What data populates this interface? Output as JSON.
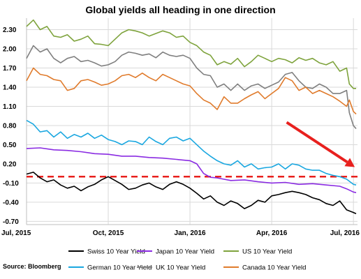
{
  "chart_data": {
    "type": "line",
    "title": "Global yields all heading in one direction",
    "source": "Source: Bloomberg",
    "x_tick_labels": [
      "Jul, 2015",
      "Oct, 2015",
      "Jan, 2016",
      "Apr, 2016",
      "Jul, 2016"
    ],
    "x_tick_months": [
      0,
      3,
      6,
      9,
      12
    ],
    "xlim_months": [
      0,
      12.15
    ],
    "y_tick_labels": [
      "2.30",
      "2.00",
      "1.70",
      "1.40",
      "1.10",
      "0.80",
      "0.50",
      "0.20",
      "-0.10",
      "-0.40",
      "-0.70"
    ],
    "y_ticks": [
      2.3,
      2.0,
      1.7,
      1.4,
      1.1,
      0.8,
      0.5,
      0.2,
      -0.1,
      -0.4,
      -0.7
    ],
    "ylim": [
      -0.75,
      2.48
    ],
    "grid": true,
    "reference_line": {
      "y": 0.0,
      "color": "#e8201e",
      "style": "dashed"
    },
    "arrow_annotation": {
      "from": [
        9.55,
        0.85
      ],
      "to": [
        12.05,
        0.15
      ],
      "color": "#e8201e"
    },
    "series": [
      {
        "name": "Swiss 10 Year Yield",
        "color": "#000000",
        "points": [
          [
            0,
            0.04
          ],
          [
            0.25,
            0.07
          ],
          [
            0.5,
            -0.02
          ],
          [
            0.75,
            -0.08
          ],
          [
            1,
            -0.05
          ],
          [
            1.25,
            -0.13
          ],
          [
            1.5,
            -0.18
          ],
          [
            1.75,
            -0.15
          ],
          [
            2,
            -0.22
          ],
          [
            2.25,
            -0.16
          ],
          [
            2.5,
            -0.12
          ],
          [
            2.75,
            -0.05
          ],
          [
            3,
            0.0
          ],
          [
            3.25,
            -0.06
          ],
          [
            3.5,
            -0.12
          ],
          [
            3.75,
            -0.2
          ],
          [
            4,
            -0.18
          ],
          [
            4.25,
            -0.13
          ],
          [
            4.5,
            -0.1
          ],
          [
            4.75,
            -0.16
          ],
          [
            5,
            -0.2
          ],
          [
            5.25,
            -0.12
          ],
          [
            5.5,
            -0.08
          ],
          [
            5.75,
            -0.12
          ],
          [
            6,
            -0.18
          ],
          [
            6.25,
            -0.26
          ],
          [
            6.5,
            -0.35
          ],
          [
            6.75,
            -0.3
          ],
          [
            7,
            -0.4
          ],
          [
            7.25,
            -0.45
          ],
          [
            7.5,
            -0.38
          ],
          [
            7.75,
            -0.42
          ],
          [
            8,
            -0.5
          ],
          [
            8.25,
            -0.45
          ],
          [
            8.5,
            -0.37
          ],
          [
            8.75,
            -0.4
          ],
          [
            9,
            -0.3
          ],
          [
            9.25,
            -0.28
          ],
          [
            9.5,
            -0.25
          ],
          [
            9.75,
            -0.23
          ],
          [
            10,
            -0.25
          ],
          [
            10.25,
            -0.28
          ],
          [
            10.5,
            -0.33
          ],
          [
            10.75,
            -0.36
          ],
          [
            11,
            -0.42
          ],
          [
            11.25,
            -0.45
          ],
          [
            11.5,
            -0.38
          ],
          [
            11.75,
            -0.52
          ],
          [
            12,
            -0.56
          ],
          [
            12.1,
            -0.58
          ]
        ]
      },
      {
        "name": "Japan 10 Year Yield",
        "color": "#8a2be2",
        "points": [
          [
            0,
            0.44
          ],
          [
            0.5,
            0.45
          ],
          [
            1,
            0.42
          ],
          [
            1.5,
            0.41
          ],
          [
            2,
            0.39
          ],
          [
            2.5,
            0.36
          ],
          [
            3,
            0.35
          ],
          [
            3.5,
            0.32
          ],
          [
            4,
            0.32
          ],
          [
            4.5,
            0.3
          ],
          [
            5,
            0.29
          ],
          [
            5.5,
            0.27
          ],
          [
            6,
            0.25
          ],
          [
            6.25,
            0.2
          ],
          [
            6.5,
            0.05
          ],
          [
            6.75,
            -0.01
          ],
          [
            7,
            -0.02
          ],
          [
            7.5,
            -0.06
          ],
          [
            8,
            -0.05
          ],
          [
            8.5,
            -0.08
          ],
          [
            9,
            -0.1
          ],
          [
            9.5,
            -0.09
          ],
          [
            10,
            -0.12
          ],
          [
            10.5,
            -0.11
          ],
          [
            11,
            -0.13
          ],
          [
            11.5,
            -0.15
          ],
          [
            11.75,
            -0.19
          ],
          [
            12,
            -0.24
          ],
          [
            12.1,
            -0.25
          ]
        ]
      },
      {
        "name": "US 10 Year Yield",
        "color": "#7ea33c",
        "points": [
          [
            0,
            2.35
          ],
          [
            0.25,
            2.45
          ],
          [
            0.5,
            2.3
          ],
          [
            0.75,
            2.35
          ],
          [
            1,
            2.2
          ],
          [
            1.25,
            2.18
          ],
          [
            1.5,
            2.22
          ],
          [
            1.75,
            2.12
          ],
          [
            2,
            2.15
          ],
          [
            2.25,
            2.2
          ],
          [
            2.5,
            2.08
          ],
          [
            2.75,
            2.07
          ],
          [
            3,
            2.05
          ],
          [
            3.25,
            2.15
          ],
          [
            3.5,
            2.25
          ],
          [
            3.75,
            2.3
          ],
          [
            4,
            2.28
          ],
          [
            4.25,
            2.25
          ],
          [
            4.5,
            2.2
          ],
          [
            4.75,
            2.24
          ],
          [
            5,
            2.28
          ],
          [
            5.25,
            2.25
          ],
          [
            5.5,
            2.18
          ],
          [
            5.75,
            2.2
          ],
          [
            6,
            2.1
          ],
          [
            6.25,
            2.05
          ],
          [
            6.5,
            1.95
          ],
          [
            6.75,
            1.9
          ],
          [
            7,
            1.75
          ],
          [
            7.25,
            1.8
          ],
          [
            7.5,
            1.76
          ],
          [
            7.75,
            1.85
          ],
          [
            8,
            1.72
          ],
          [
            8.25,
            1.8
          ],
          [
            8.5,
            1.9
          ],
          [
            8.75,
            1.85
          ],
          [
            9,
            1.8
          ],
          [
            9.25,
            1.85
          ],
          [
            9.5,
            1.83
          ],
          [
            9.75,
            1.78
          ],
          [
            10,
            1.86
          ],
          [
            10.25,
            1.82
          ],
          [
            10.5,
            1.85
          ],
          [
            10.75,
            1.78
          ],
          [
            11,
            1.75
          ],
          [
            11.25,
            1.8
          ],
          [
            11.5,
            1.65
          ],
          [
            11.75,
            1.7
          ],
          [
            11.85,
            1.45
          ],
          [
            12,
            1.38
          ],
          [
            12.1,
            1.38
          ]
        ]
      },
      {
        "name": "German 10 Year Yield",
        "color": "#1aa7e0",
        "points": [
          [
            0,
            0.88
          ],
          [
            0.25,
            0.82
          ],
          [
            0.5,
            0.7
          ],
          [
            0.75,
            0.72
          ],
          [
            1,
            0.62
          ],
          [
            1.25,
            0.7
          ],
          [
            1.5,
            0.6
          ],
          [
            1.75,
            0.66
          ],
          [
            2,
            0.62
          ],
          [
            2.25,
            0.68
          ],
          [
            2.5,
            0.6
          ],
          [
            2.75,
            0.65
          ],
          [
            3,
            0.58
          ],
          [
            3.25,
            0.55
          ],
          [
            3.5,
            0.5
          ],
          [
            3.75,
            0.56
          ],
          [
            4,
            0.55
          ],
          [
            4.25,
            0.5
          ],
          [
            4.5,
            0.62
          ],
          [
            4.75,
            0.55
          ],
          [
            5,
            0.5
          ],
          [
            5.25,
            0.6
          ],
          [
            5.5,
            0.62
          ],
          [
            5.75,
            0.56
          ],
          [
            6,
            0.6
          ],
          [
            6.25,
            0.5
          ],
          [
            6.5,
            0.4
          ],
          [
            6.75,
            0.32
          ],
          [
            7,
            0.25
          ],
          [
            7.25,
            0.2
          ],
          [
            7.5,
            0.18
          ],
          [
            7.75,
            0.25
          ],
          [
            8,
            0.15
          ],
          [
            8.25,
            0.2
          ],
          [
            8.5,
            0.12
          ],
          [
            8.75,
            0.14
          ],
          [
            9,
            0.15
          ],
          [
            9.25,
            0.2
          ],
          [
            9.5,
            0.12
          ],
          [
            9.75,
            0.2
          ],
          [
            10,
            0.18
          ],
          [
            10.25,
            0.12
          ],
          [
            10.5,
            0.1
          ],
          [
            10.75,
            0.1
          ],
          [
            11,
            0.05
          ],
          [
            11.25,
            0.02
          ],
          [
            11.5,
            0.0
          ],
          [
            11.75,
            -0.04
          ],
          [
            12,
            -0.12
          ],
          [
            12.1,
            -0.13
          ]
        ]
      },
      {
        "name": "UK 10 Year Yield",
        "color": "#7f7f7f",
        "points": [
          [
            0,
            1.85
          ],
          [
            0.25,
            2.05
          ],
          [
            0.5,
            1.95
          ],
          [
            0.75,
            2.0
          ],
          [
            1,
            1.85
          ],
          [
            1.25,
            1.78
          ],
          [
            1.5,
            1.85
          ],
          [
            1.75,
            1.88
          ],
          [
            2,
            1.8
          ],
          [
            2.25,
            1.82
          ],
          [
            2.5,
            1.78
          ],
          [
            2.75,
            1.73
          ],
          [
            3,
            1.75
          ],
          [
            3.25,
            1.8
          ],
          [
            3.5,
            1.9
          ],
          [
            3.75,
            1.95
          ],
          [
            4,
            1.93
          ],
          [
            4.25,
            1.9
          ],
          [
            4.5,
            1.92
          ],
          [
            4.75,
            1.86
          ],
          [
            5,
            1.95
          ],
          [
            5.25,
            1.9
          ],
          [
            5.5,
            1.88
          ],
          [
            5.75,
            1.9
          ],
          [
            6,
            1.85
          ],
          [
            6.25,
            1.7
          ],
          [
            6.5,
            1.6
          ],
          [
            6.75,
            1.58
          ],
          [
            7,
            1.4
          ],
          [
            7.25,
            1.45
          ],
          [
            7.5,
            1.35
          ],
          [
            7.75,
            1.45
          ],
          [
            8,
            1.35
          ],
          [
            8.25,
            1.42
          ],
          [
            8.5,
            1.45
          ],
          [
            8.75,
            1.38
          ],
          [
            9,
            1.43
          ],
          [
            9.25,
            1.48
          ],
          [
            9.5,
            1.6
          ],
          [
            9.75,
            1.63
          ],
          [
            10,
            1.5
          ],
          [
            10.25,
            1.4
          ],
          [
            10.5,
            1.38
          ],
          [
            10.75,
            1.45
          ],
          [
            11,
            1.4
          ],
          [
            11.25,
            1.3
          ],
          [
            11.5,
            1.3
          ],
          [
            11.75,
            1.35
          ],
          [
            11.85,
            1.0
          ],
          [
            12,
            0.8
          ],
          [
            12.1,
            0.75
          ]
        ]
      },
      {
        "name": "Canada 10 Year Yield",
        "color": "#e07b2c",
        "points": [
          [
            0,
            1.5
          ],
          [
            0.25,
            1.7
          ],
          [
            0.5,
            1.6
          ],
          [
            0.75,
            1.58
          ],
          [
            1,
            1.52
          ],
          [
            1.25,
            1.5
          ],
          [
            1.5,
            1.35
          ],
          [
            1.75,
            1.38
          ],
          [
            2,
            1.5
          ],
          [
            2.25,
            1.52
          ],
          [
            2.5,
            1.48
          ],
          [
            2.75,
            1.43
          ],
          [
            3,
            1.45
          ],
          [
            3.25,
            1.5
          ],
          [
            3.5,
            1.58
          ],
          [
            3.75,
            1.6
          ],
          [
            4,
            1.55
          ],
          [
            4.25,
            1.62
          ],
          [
            4.5,
            1.55
          ],
          [
            4.75,
            1.5
          ],
          [
            5,
            1.6
          ],
          [
            5.25,
            1.55
          ],
          [
            5.5,
            1.5
          ],
          [
            5.75,
            1.45
          ],
          [
            6,
            1.42
          ],
          [
            6.25,
            1.3
          ],
          [
            6.5,
            1.2
          ],
          [
            6.75,
            1.15
          ],
          [
            7,
            1.05
          ],
          [
            7.25,
            1.25
          ],
          [
            7.5,
            1.15
          ],
          [
            7.75,
            1.15
          ],
          [
            8,
            1.22
          ],
          [
            8.25,
            1.28
          ],
          [
            8.5,
            1.33
          ],
          [
            8.75,
            1.22
          ],
          [
            9,
            1.3
          ],
          [
            9.25,
            1.38
          ],
          [
            9.5,
            1.55
          ],
          [
            9.75,
            1.5
          ],
          [
            10,
            1.35
          ],
          [
            10.25,
            1.4
          ],
          [
            10.5,
            1.3
          ],
          [
            10.75,
            1.35
          ],
          [
            11,
            1.3
          ],
          [
            11.25,
            1.25
          ],
          [
            11.5,
            1.18
          ],
          [
            11.75,
            1.1
          ],
          [
            11.85,
            1.2
          ],
          [
            12,
            1.02
          ],
          [
            12.1,
            0.98
          ]
        ]
      }
    ]
  }
}
